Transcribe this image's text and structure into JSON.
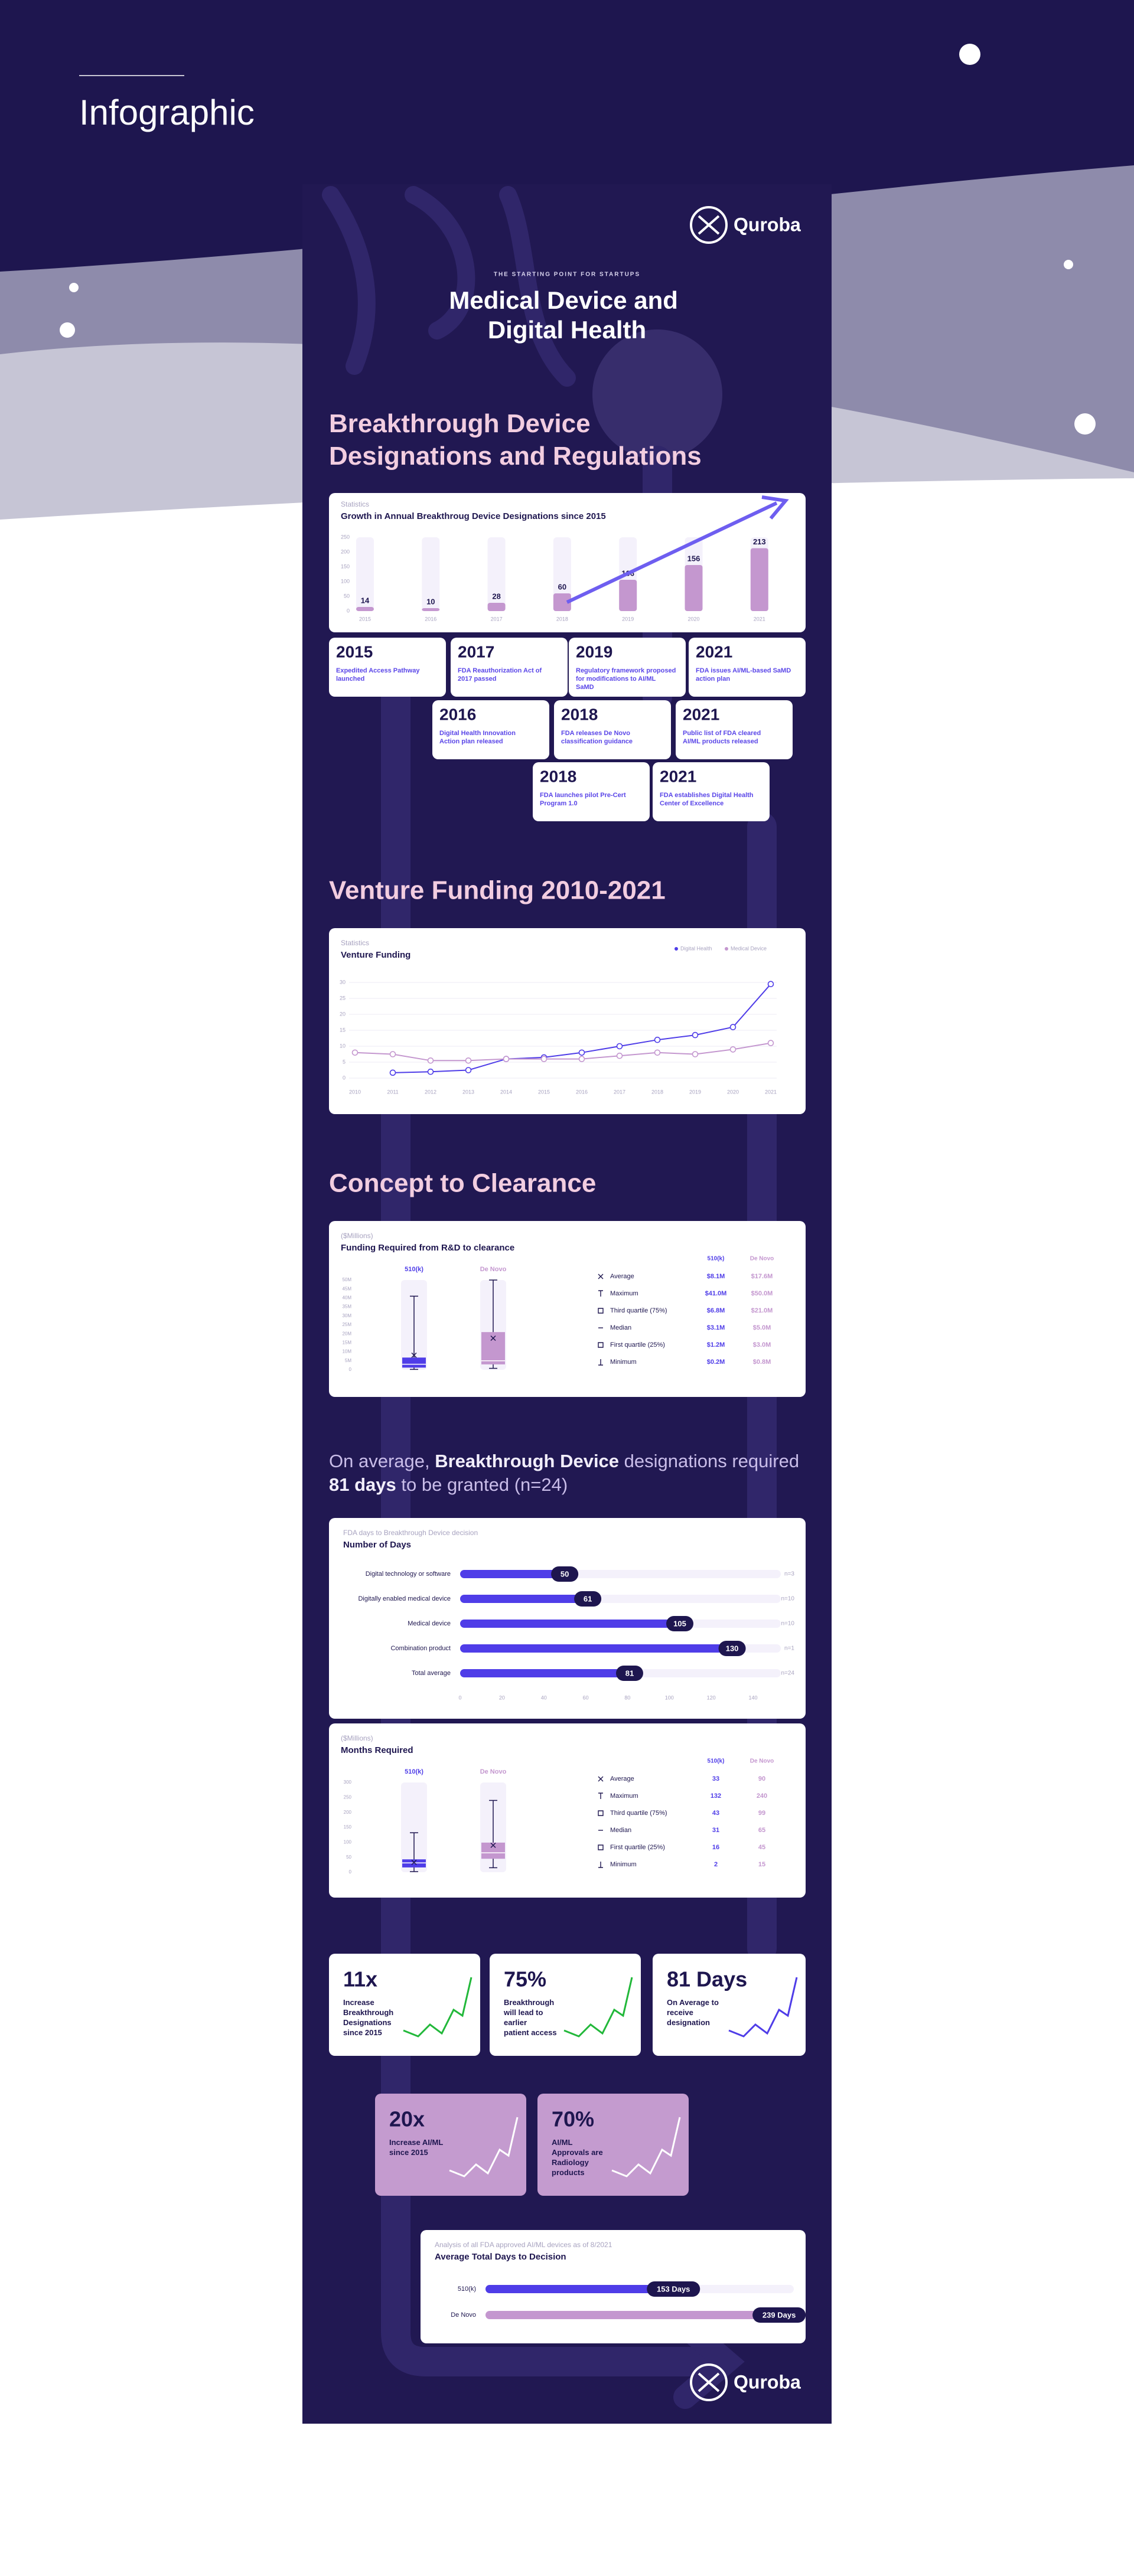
{
  "page": {
    "label": "Infographic",
    "brand": "Quroba",
    "kicker": "THE STARTING POINT FOR STARTUPS",
    "title": "Medical Device and Digital Health",
    "sections": [
      "Breakthrough Device Designations and Regulations",
      "Venture Funding 2010-2021",
      "Concept to Clearance"
    ],
    "headline": [
      [
        {
          "text": "On average, ",
          "bold": false
        },
        {
          "text": "Breakthrough Device",
          "bold": true
        },
        {
          "text": " designations required",
          "bold": false
        }
      ],
      [
        {
          "text": "81 days",
          "bold": true
        },
        {
          "text": " to be granted (n=24)",
          "bold": false
        }
      ]
    ]
  },
  "timeline": [
    {
      "year": "2015",
      "text": "Expedited Access Pathway launched"
    },
    {
      "year": "2017",
      "text": "FDA Reauthorization Act of 2017 passed"
    },
    {
      "year": "2019",
      "text": "Regulatory framework proposed for modifications to AI/ML SaMD"
    },
    {
      "year": "2021",
      "text": "FDA issues AI/ML-based SaMD action plan"
    },
    {
      "year": "2016",
      "text": "Digital Health Innovation Action plan released"
    },
    {
      "year": "2018",
      "text": "FDA releases De Novo classification guidance"
    },
    {
      "year": "2021",
      "text": "Public list of FDA cleared AI/ML products released"
    },
    {
      "year": "2018",
      "text": "FDA launches pilot Pre-Cert Program 1.0"
    },
    {
      "year": "2021",
      "text": "FDA establishes Digital Health Center of Excellence"
    }
  ],
  "stats": [
    {
      "value": "11x",
      "text": "Increase Breakthrough Designations since 2015",
      "line_color": "#22b83a"
    },
    {
      "value": "75%",
      "text": "Breakthrough will lead to earlier patient access",
      "line_color": "#22b83a"
    },
    {
      "value": "81 Days",
      "text": "On Average to receive designation",
      "line_color": "#4f3de8"
    },
    {
      "value": "20x",
      "text": "Increase AI/ML since 2015",
      "line_color": "#ffffff"
    },
    {
      "value": "70%",
      "text": "AI/ML Approvals are Radiology products",
      "line_color": "#ffffff"
    }
  ],
  "chart_data": [
    {
      "type": "bar",
      "subtitle": "Statistics",
      "title": "Growth in Annual Breakthroug Device Designations since 2015",
      "categories": [
        "2015",
        "2016",
        "2017",
        "2018",
        "2019",
        "2020",
        "2021"
      ],
      "values": [
        14,
        10,
        28,
        60,
        106,
        156,
        213
      ],
      "color": "#c497cf",
      "ylim": [
        0,
        250
      ],
      "yticks": [
        0,
        50,
        100,
        150,
        200,
        250
      ]
    },
    {
      "type": "line",
      "subtitle": "Statistics",
      "title": "Venture Funding",
      "x": [
        2010,
        2011,
        2012,
        2013,
        2014,
        2015,
        2016,
        2017,
        2018,
        2019,
        2020,
        2021
      ],
      "xlim": [
        2010,
        2021
      ],
      "xticks": [
        2010,
        2011,
        2012,
        2013,
        2014,
        2015,
        2016,
        2017,
        2018,
        2019,
        2020,
        2021
      ],
      "ylim": [
        0,
        30
      ],
      "yticks": [
        0,
        5,
        10,
        15,
        20,
        25,
        30
      ],
      "grid": true,
      "legend": "top-right",
      "series": [
        {
          "name": "Digital Health",
          "color": "#4f3de8",
          "values": [
            null,
            1.7,
            2,
            2.5,
            6,
            6.5,
            8,
            10,
            12,
            13.5,
            16,
            29.5
          ]
        },
        {
          "name": "Medical Device",
          "color": "#c497cf",
          "values": [
            8,
            7.5,
            5.5,
            5.5,
            6,
            6,
            6,
            7,
            8,
            7.5,
            9,
            11
          ]
        }
      ]
    },
    {
      "type": "box",
      "subtitle": "($Millions)",
      "title": "Funding Required from R&D to clearance",
      "stats": [
        "Average",
        "Maximum",
        "Third quartile (75%)",
        "Median",
        "First quartile (25%)",
        "Minimum"
      ],
      "ylim": [
        0,
        50
      ],
      "yticks": [
        0,
        {
          "value": 5,
          "label": "5M"
        },
        {
          "value": 10,
          "label": "10M"
        },
        {
          "value": 15,
          "label": "15M"
        },
        {
          "value": 20,
          "label": "20M"
        },
        {
          "value": 25,
          "label": "25M"
        },
        {
          "value": 30,
          "label": "30M"
        },
        {
          "value": 35,
          "label": "35M"
        },
        {
          "value": 40,
          "label": "40M"
        },
        {
          "value": 45,
          "label": "45M"
        },
        {
          "value": 50,
          "label": "50M"
        }
      ],
      "series": [
        {
          "name": "510(k)",
          "color": "#4f3de8",
          "values": [
            8.1,
            41,
            6.8,
            3.1,
            1.2,
            0.2
          ],
          "value_labels": [
            "$8.1M",
            "$41.0M",
            "$6.8M",
            "$3.1M",
            "$1.2M",
            "$0.2M"
          ]
        },
        {
          "name": "De Novo",
          "color": "#c497cf",
          "values": [
            17.6,
            50,
            21,
            5,
            3,
            0.8
          ],
          "value_labels": [
            "$17.6M",
            "$50.0M",
            "$21.0M",
            "$5.0M",
            "$3.0M",
            "$0.8M"
          ]
        }
      ]
    },
    {
      "type": "hbar",
      "subtitle": "FDA days to Breakthrough Device decision",
      "title": "Number of Days",
      "categories": [
        "Digital technology or software",
        "Digitally enabled medical device",
        "Medical device",
        "Combination product",
        "Total average"
      ],
      "values": [
        50,
        61,
        105,
        130,
        81
      ],
      "sample_sizes": [
        "n=3",
        "n=10",
        "n=10",
        "n=1",
        "n=24"
      ],
      "color": "#4f3de8",
      "xlim": [
        0,
        140
      ],
      "xticks": [
        0,
        20,
        40,
        60,
        80,
        100,
        120,
        140
      ]
    },
    {
      "type": "box",
      "subtitle": "($Millions)",
      "title": "Months Required",
      "stats": [
        "Average",
        "Maximum",
        "Third quartile (75%)",
        "Median",
        "First quartile (25%)",
        "Minimum"
      ],
      "ylim": [
        0,
        300
      ],
      "yticks": [
        0,
        50,
        100,
        150,
        200,
        250,
        300
      ],
      "series": [
        {
          "name": "510(k)",
          "color": "#4f3de8",
          "values": [
            33,
            132,
            43,
            31,
            16,
            2
          ]
        },
        {
          "name": "De Novo",
          "color": "#c497cf",
          "values": [
            90,
            240,
            99,
            65,
            45,
            15
          ]
        }
      ]
    },
    {
      "type": "hbar",
      "subtitle": "Analysis of all FDA approved AI/ML devices as of 8/2021",
      "title": "Average Total Days to Decision",
      "categories": [
        "510(k)",
        "De Novo"
      ],
      "values": [
        153,
        239
      ],
      "value_labels": [
        "153 Days",
        "239 Days"
      ],
      "colors": [
        "#4f3de8",
        "#c497cf"
      ],
      "xlim": [
        0,
        250
      ]
    }
  ]
}
